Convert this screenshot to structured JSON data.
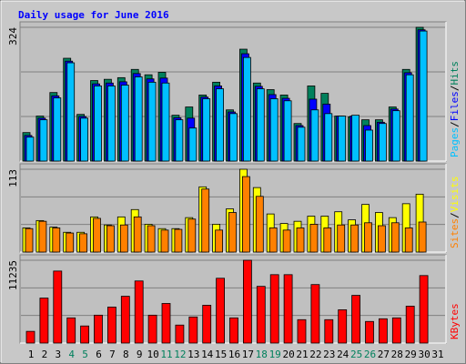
{
  "legend_separator": "/",
  "chart_data": [
    {
      "type": "bar",
      "title": "Daily usage for June 2016",
      "title_color": "#0000ff",
      "ylim": [
        0,
        324
      ],
      "yticks": [
        324
      ],
      "grid": true,
      "series": [
        {
          "name": "Hits",
          "color": "#00805c",
          "values": [
            69,
            109,
            166,
            249,
            113,
            195,
            198,
            202,
            222,
            209,
            215,
            111,
            131,
            160,
            191,
            124,
            271,
            189,
            173,
            160,
            91,
            182,
            164,
            109,
            107,
            100,
            100,
            131,
            222,
            324,
            null
          ]
        },
        {
          "name": "Files",
          "color": "#0000ff",
          "values": [
            62,
            104,
            158,
            242,
            108,
            187,
            189,
            192,
            212,
            199,
            201,
            105,
            104,
            155,
            182,
            119,
            260,
            181,
            161,
            152,
            86,
            150,
            138,
            109,
            109,
            86,
            94,
            126,
            214,
            318,
            null
          ]
        },
        {
          "name": "Pages",
          "color": "#00c0ff",
          "values": [
            58,
            100,
            153,
            238,
            104,
            182,
            182,
            184,
            204,
            191,
            189,
            100,
            80,
            151,
            175,
            115,
            251,
            175,
            151,
            146,
            82,
            124,
            115,
            109,
            111,
            75,
            91,
            122,
            209,
            315,
            null
          ]
        }
      ]
    },
    {
      "type": "bar",
      "ylim": [
        0,
        113
      ],
      "yticks": [
        113
      ],
      "grid": true,
      "series": [
        {
          "name": "Visits",
          "color": "#ffff00",
          "values": [
            33,
            43,
            34,
            27,
            27,
            48,
            37,
            48,
            58,
            38,
            32,
            32,
            47,
            89,
            38,
            59,
            113,
            88,
            52,
            39,
            42,
            49,
            49,
            55,
            44,
            65,
            54,
            47,
            66,
            79,
            null
          ]
        },
        {
          "name": "Sites",
          "color": "#ff8000",
          "values": [
            32,
            42,
            33,
            26,
            25,
            46,
            36,
            37,
            48,
            36,
            30,
            31,
            45,
            86,
            30,
            54,
            103,
            76,
            33,
            30,
            33,
            38,
            33,
            37,
            37,
            40,
            36,
            40,
            33,
            41,
            null
          ]
        }
      ]
    },
    {
      "type": "bar",
      "ylim": [
        0,
        11235
      ],
      "yticks": [
        11235
      ],
      "grid": true,
      "categories": [
        "1",
        "2",
        "3",
        "4",
        "5",
        "6",
        "7",
        "8",
        "9",
        "10",
        "11",
        "12",
        "13",
        "14",
        "15",
        "16",
        "17",
        "18",
        "19",
        "20",
        "21",
        "22",
        "23",
        "24",
        "25",
        "26",
        "27",
        "28",
        "29",
        "30",
        "31"
      ],
      "category_colors": [
        "#000000",
        "#000000",
        "#000000",
        "#00805c",
        "#00805c",
        "#000000",
        "#000000",
        "#000000",
        "#000000",
        "#000000",
        "#00805c",
        "#00805c",
        "#000000",
        "#000000",
        "#000000",
        "#000000",
        "#000000",
        "#00805c",
        "#00805c",
        "#000000",
        "#000000",
        "#000000",
        "#000000",
        "#000000",
        "#00805c",
        "#00805c",
        "#000000",
        "#000000",
        "#000000",
        "#000000",
        "#000000"
      ],
      "series": [
        {
          "name": "KBytes",
          "color": "#ff0000",
          "values": [
            1588,
            6106,
            9770,
            3419,
            2320,
            3786,
            4885,
            6350,
            8426,
            3786,
            5373,
            2442,
            3541,
            5129,
            8793,
            3419,
            11235,
            7694,
            9281,
            9281,
            3175,
            7938,
            3175,
            4518,
            6472,
            2931,
            3297,
            3419,
            5007,
            9159,
            null
          ]
        }
      ]
    }
  ]
}
